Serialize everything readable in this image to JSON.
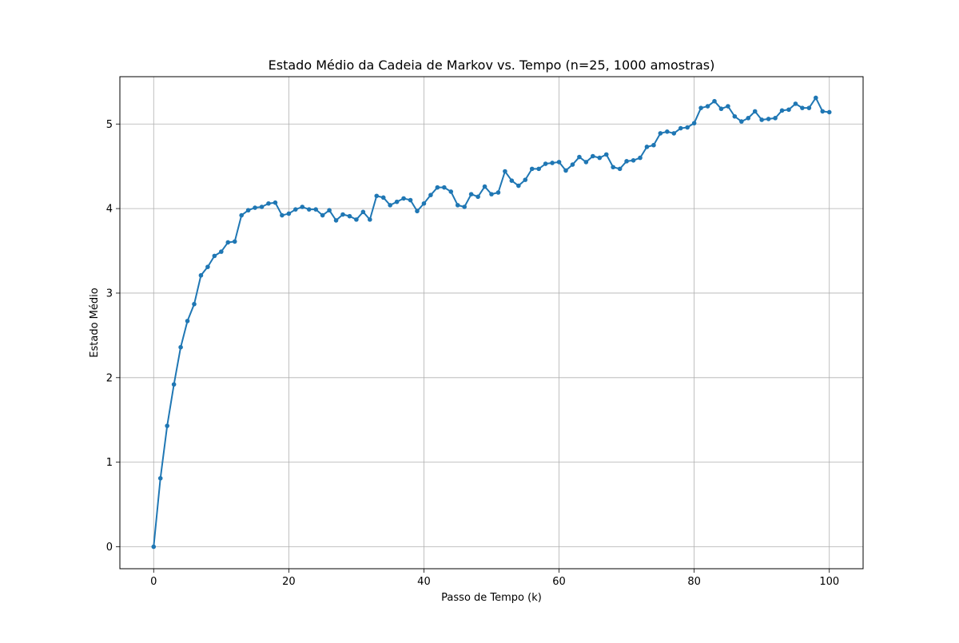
{
  "chart_data": {
    "type": "line",
    "title": "Estado Médio da Cadeia de Markov vs. Tempo (n=25, 1000 amostras)",
    "xlabel": "Passo de Tempo (k)",
    "ylabel": "Estado Médio",
    "xlim": [
      -5,
      105
    ],
    "ylim": [
      -0.26,
      5.56
    ],
    "xticks": [
      0,
      20,
      40,
      60,
      80,
      100
    ],
    "yticks": [
      0,
      1,
      2,
      3,
      4,
      5
    ],
    "grid": true,
    "series": [
      {
        "color": "#1f77b4",
        "marker": "circle",
        "x": [
          0,
          1,
          2,
          3,
          4,
          5,
          6,
          7,
          8,
          9,
          10,
          11,
          12,
          13,
          14,
          15,
          16,
          17,
          18,
          19,
          20,
          21,
          22,
          23,
          24,
          25,
          26,
          27,
          28,
          29,
          30,
          31,
          32,
          33,
          34,
          35,
          36,
          37,
          38,
          39,
          40,
          41,
          42,
          43,
          44,
          45,
          46,
          47,
          48,
          49,
          50,
          51,
          52,
          53,
          54,
          55,
          56,
          57,
          58,
          59,
          60,
          61,
          62,
          63,
          64,
          65,
          66,
          67,
          68,
          69,
          70,
          71,
          72,
          73,
          74,
          75,
          76,
          77,
          78,
          79,
          80,
          81,
          82,
          83,
          84,
          85,
          86,
          87,
          88,
          89,
          90,
          91,
          92,
          93,
          94,
          95,
          96,
          97,
          98,
          99,
          100
        ],
        "y": [
          0.0,
          0.81,
          1.43,
          1.92,
          2.36,
          2.67,
          2.87,
          3.21,
          3.31,
          3.44,
          3.49,
          3.6,
          3.61,
          3.92,
          3.98,
          4.01,
          4.02,
          4.06,
          4.07,
          3.92,
          3.94,
          3.99,
          4.02,
          3.99,
          3.99,
          3.92,
          3.98,
          3.86,
          3.93,
          3.91,
          3.87,
          3.96,
          3.87,
          4.15,
          4.13,
          4.04,
          4.08,
          4.12,
          4.1,
          3.97,
          4.06,
          4.16,
          4.25,
          4.25,
          4.2,
          4.04,
          4.02,
          4.17,
          4.14,
          4.26,
          4.17,
          4.19,
          4.44,
          4.33,
          4.27,
          4.34,
          4.47,
          4.47,
          4.53,
          4.54,
          4.55,
          4.45,
          4.52,
          4.61,
          4.55,
          4.62,
          4.6,
          4.64,
          4.49,
          4.47,
          4.56,
          4.57,
          4.6,
          4.73,
          4.75,
          4.89,
          4.91,
          4.89,
          4.95,
          4.96,
          5.01,
          5.19,
          5.21,
          5.27,
          5.18,
          5.21,
          5.09,
          5.03,
          5.07,
          5.15,
          5.05,
          5.06,
          5.07,
          5.16,
          5.17,
          5.24,
          5.19,
          5.19,
          5.31,
          5.15,
          5.14
        ]
      }
    ]
  }
}
